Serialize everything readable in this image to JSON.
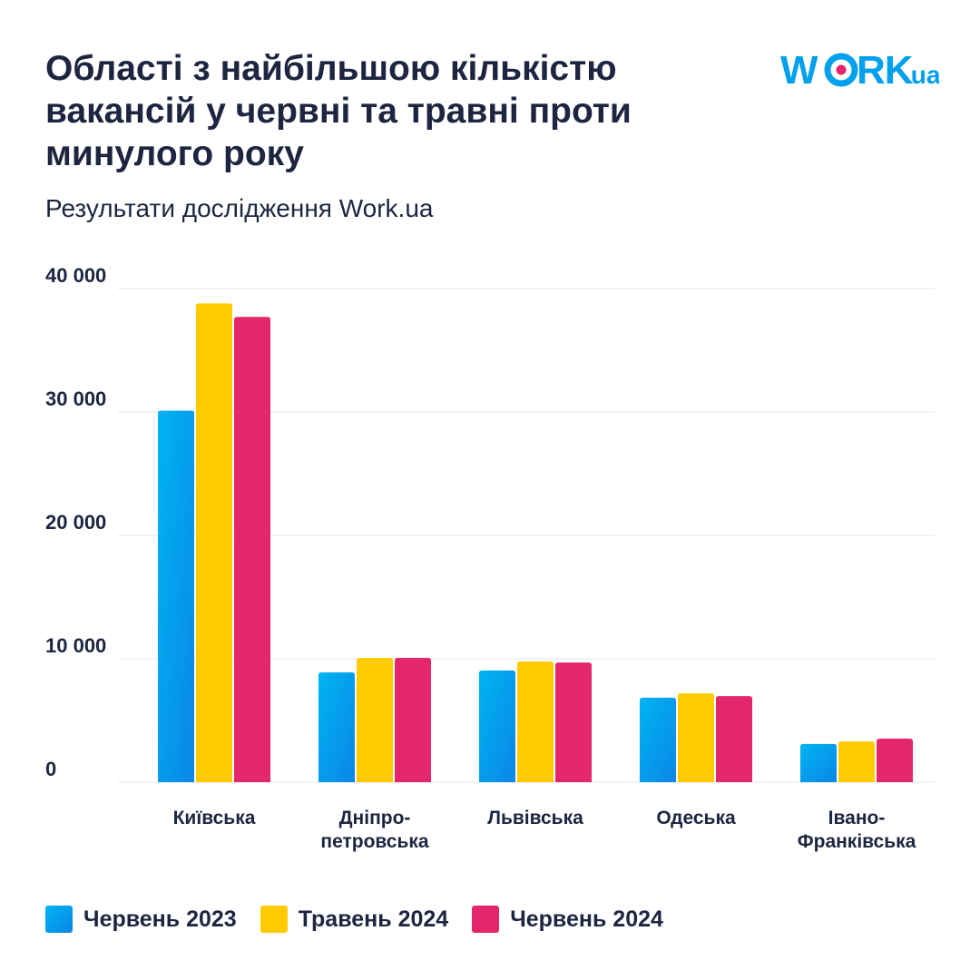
{
  "title": "Області з найбільшою кількістю вакансій у червні та травні проти минулого року",
  "subtitle": "Результати дослідження Work.ua",
  "logo": {
    "text": "WORK.ua",
    "color": "#00a0ec",
    "dot_color": "#e3246a"
  },
  "chart_data": {
    "type": "bar",
    "title": "Області з найбільшою кількістю вакансій у червні та травні проти минулого року",
    "categories": [
      [
        "Київська"
      ],
      [
        "Дніпро-",
        "петровська"
      ],
      [
        "Львівська"
      ],
      [
        "Одеська"
      ],
      [
        "Івано-",
        "Франківська"
      ]
    ],
    "series": [
      {
        "name": "Червень 2023",
        "color": "#0aa6ef",
        "values": [
          30100,
          8900,
          9050,
          6850,
          3100
        ]
      },
      {
        "name": "Травень 2024",
        "color": "#ffcb00",
        "values": [
          38800,
          10070,
          9780,
          7200,
          3300
        ]
      },
      {
        "name": "Червень 2024",
        "color": "#e3276a",
        "values": [
          37700,
          10070,
          9700,
          6980,
          3530
        ]
      }
    ],
    "yticks": [
      "0",
      "10 000",
      "20 000",
      "30 000",
      "40 000"
    ],
    "ytick_values": [
      0,
      10000,
      20000,
      30000,
      40000
    ],
    "ylim": [
      0,
      40000
    ],
    "grid": true,
    "legend": "bottom-left",
    "xlabel": "",
    "ylabel": ""
  }
}
